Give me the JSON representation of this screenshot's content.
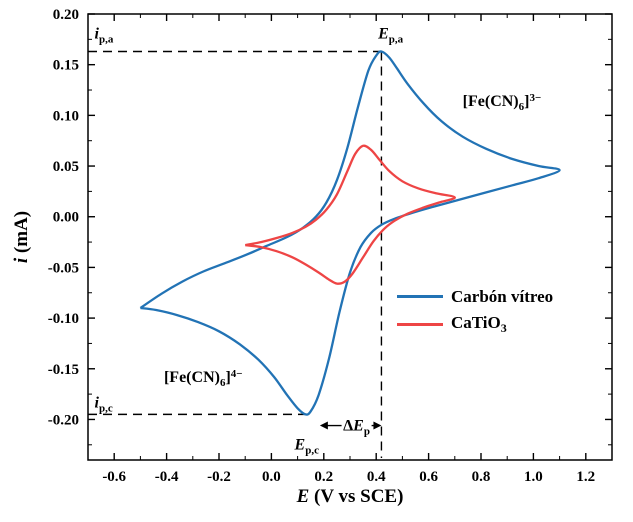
{
  "chart_data": {
    "type": "line",
    "title": "",
    "x_axis": {
      "title_italic": "E",
      "title_rest": " (V vs SCE)",
      "min": -0.7,
      "max": 1.3,
      "minor_step": 0.1,
      "ticks": [
        {
          "value": -0.6,
          "label": "-0.6"
        },
        {
          "value": -0.4,
          "label": "-0.4"
        },
        {
          "value": -0.2,
          "label": "-0.2"
        },
        {
          "value": 0.0,
          "label": "0.0"
        },
        {
          "value": 0.2,
          "label": "0.2"
        },
        {
          "value": 0.4,
          "label": "0.4"
        },
        {
          "value": 0.6,
          "label": "0.6"
        },
        {
          "value": 0.8,
          "label": "0.8"
        },
        {
          "value": 1.0,
          "label": "1.0"
        },
        {
          "value": 1.2,
          "label": "1.2"
        }
      ]
    },
    "y_axis": {
      "title_italic": "i",
      "title_rest": " (mA)",
      "min": -0.24,
      "max": 0.2,
      "minor_step": 0.025,
      "ticks": [
        {
          "value": 0.2,
          "label": "0.20"
        },
        {
          "value": 0.15,
          "label": "0.15"
        },
        {
          "value": 0.1,
          "label": "0.10"
        },
        {
          "value": 0.05,
          "label": "0.05"
        },
        {
          "value": 0.0,
          "label": "0.00"
        },
        {
          "value": -0.05,
          "label": "-0.05"
        },
        {
          "value": -0.1,
          "label": "-0.10"
        },
        {
          "value": -0.15,
          "label": "-0.15"
        },
        {
          "value": -0.2,
          "label": "-0.20"
        }
      ]
    },
    "series": [
      {
        "id": "carbon-vitreo",
        "name": "Carbón vítreo",
        "label_main": "Carbón vítreo",
        "label_sub": "",
        "color": "#2273b5",
        "points": [
          [
            -0.5,
            -0.09
          ],
          [
            -0.42,
            -0.076
          ],
          [
            -0.34,
            -0.064
          ],
          [
            -0.26,
            -0.054
          ],
          [
            -0.18,
            -0.046
          ],
          [
            -0.1,
            -0.038
          ],
          [
            -0.02,
            -0.029
          ],
          [
            0.06,
            -0.02
          ],
          [
            0.12,
            -0.011
          ],
          [
            0.17,
            0.0
          ],
          [
            0.21,
            0.014
          ],
          [
            0.25,
            0.036
          ],
          [
            0.29,
            0.068
          ],
          [
            0.33,
            0.108
          ],
          [
            0.37,
            0.144
          ],
          [
            0.4,
            0.159
          ],
          [
            0.42,
            0.163
          ],
          [
            0.45,
            0.157
          ],
          [
            0.48,
            0.146
          ],
          [
            0.52,
            0.131
          ],
          [
            0.58,
            0.112
          ],
          [
            0.65,
            0.094
          ],
          [
            0.73,
            0.079
          ],
          [
            0.82,
            0.067
          ],
          [
            0.92,
            0.057
          ],
          [
            1.02,
            0.05
          ],
          [
            1.1,
            0.046
          ],
          [
            1.02,
            0.038
          ],
          [
            0.92,
            0.031
          ],
          [
            0.82,
            0.024
          ],
          [
            0.72,
            0.017
          ],
          [
            0.62,
            0.01
          ],
          [
            0.54,
            0.004
          ],
          [
            0.47,
            -0.002
          ],
          [
            0.42,
            -0.008
          ],
          [
            0.38,
            -0.016
          ],
          [
            0.34,
            -0.03
          ],
          [
            0.3,
            -0.055
          ],
          [
            0.26,
            -0.094
          ],
          [
            0.22,
            -0.14
          ],
          [
            0.18,
            -0.176
          ],
          [
            0.15,
            -0.192
          ],
          [
            0.13,
            -0.195
          ],
          [
            0.1,
            -0.189
          ],
          [
            0.06,
            -0.176
          ],
          [
            0.01,
            -0.158
          ],
          [
            -0.05,
            -0.141
          ],
          [
            -0.12,
            -0.126
          ],
          [
            -0.2,
            -0.113
          ],
          [
            -0.28,
            -0.104
          ],
          [
            -0.36,
            -0.097
          ],
          [
            -0.44,
            -0.092
          ],
          [
            -0.5,
            -0.09
          ]
        ]
      },
      {
        "id": "catio3",
        "name": "CaTiO3",
        "label_main": "CaTiO",
        "label_sub": "3",
        "color": "#ee4545",
        "points": [
          [
            -0.1,
            -0.028
          ],
          [
            -0.04,
            -0.025
          ],
          [
            0.02,
            -0.021
          ],
          [
            0.08,
            -0.016
          ],
          [
            0.13,
            -0.01
          ],
          [
            0.17,
            -0.003
          ],
          [
            0.21,
            0.007
          ],
          [
            0.25,
            0.022
          ],
          [
            0.29,
            0.045
          ],
          [
            0.32,
            0.062
          ],
          [
            0.35,
            0.07
          ],
          [
            0.38,
            0.066
          ],
          [
            0.41,
            0.057
          ],
          [
            0.45,
            0.045
          ],
          [
            0.5,
            0.035
          ],
          [
            0.56,
            0.028
          ],
          [
            0.63,
            0.023
          ],
          [
            0.7,
            0.019
          ],
          [
            0.64,
            0.014
          ],
          [
            0.58,
            0.009
          ],
          [
            0.52,
            0.003
          ],
          [
            0.47,
            -0.004
          ],
          [
            0.43,
            -0.012
          ],
          [
            0.39,
            -0.024
          ],
          [
            0.35,
            -0.04
          ],
          [
            0.31,
            -0.056
          ],
          [
            0.28,
            -0.064
          ],
          [
            0.25,
            -0.066
          ],
          [
            0.22,
            -0.062
          ],
          [
            0.18,
            -0.055
          ],
          [
            0.13,
            -0.047
          ],
          [
            0.08,
            -0.04
          ],
          [
            0.02,
            -0.034
          ],
          [
            -0.04,
            -0.03
          ],
          [
            -0.1,
            -0.028
          ]
        ]
      }
    ],
    "peaks": {
      "anodic": {
        "E": 0.42,
        "i": 0.163
      },
      "cathodic": {
        "E": 0.13,
        "i": -0.195
      }
    },
    "dashed_lines": [
      {
        "name": "ipa-level-line",
        "x1": -0.7,
        "y1": 0.163,
        "x2": 0.42,
        "y2": 0.163
      },
      {
        "name": "epa-vertical-line",
        "x1": 0.42,
        "y1": 0.163,
        "x2": 0.42,
        "y2": -0.238
      },
      {
        "name": "ipc-level-line",
        "x1": -0.7,
        "y1": -0.195,
        "x2": 0.135,
        "y2": -0.195
      }
    ],
    "delta_arrow": {
      "x1": 0.185,
      "x2": 0.42,
      "y": -0.206
    },
    "annotations": {
      "ipa": {
        "main": "i",
        "sub": "p,a",
        "x": -0.675,
        "y": 0.178,
        "anchor": "left"
      },
      "epa": {
        "main": "E",
        "sub": "p,a",
        "x": 0.455,
        "y": 0.178,
        "anchor": "center"
      },
      "ferricyanide": {
        "pre": "[Fe(CN)",
        "sub": "6",
        "post": "]",
        "sup": "3−",
        "x": 0.88,
        "y": 0.112,
        "anchor": "center"
      },
      "ferrocyanide": {
        "pre": "[Fe(CN)",
        "sub": "6",
        "post": "]",
        "sup": "4−",
        "x": -0.26,
        "y": -0.16,
        "anchor": "center"
      },
      "ipc": {
        "main": "i",
        "sub": "p,c",
        "x": -0.675,
        "y": -0.186,
        "anchor": "left"
      },
      "epc": {
        "main": "E",
        "sub": "p,c",
        "x": 0.135,
        "y": -0.227,
        "anchor": "center"
      },
      "dep": {
        "pre": "Δ",
        "main": "E",
        "sub": "p",
        "x": 0.325,
        "y": -0.208,
        "anchor": "center"
      }
    },
    "legend_position": "center-right",
    "grid": false
  }
}
